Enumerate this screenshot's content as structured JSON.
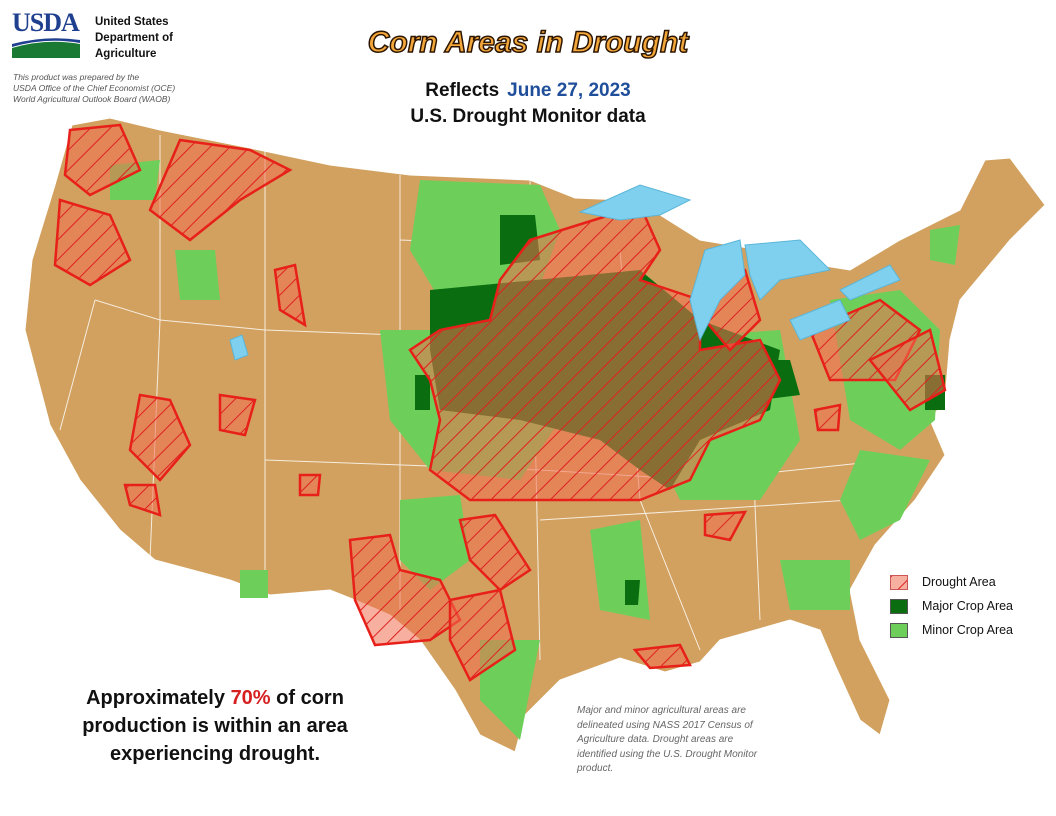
{
  "header": {
    "logo": "USDA",
    "agency": [
      "United States",
      "Department of",
      "Agriculture"
    ],
    "disclaimer": [
      "This product was prepared by the",
      "USDA Office of the Chief Economist (OCE)",
      "World Agricultural Outlook Board (WAOB)"
    ]
  },
  "title": "Corn Areas in Drought",
  "subtitle": {
    "prefix": "Reflects",
    "date": "June 27, 2023",
    "source": "U.S. Drought Monitor data"
  },
  "legend": [
    {
      "label": "Drought Area"
    },
    {
      "label": "Major Crop Area"
    },
    {
      "label": "Minor Crop Area"
    }
  ],
  "summary": {
    "lead": "Approximately",
    "highlight": "70%",
    "lines": [
      "of corn",
      "production is within an area",
      "experiencing drought."
    ]
  },
  "note": [
    "Major and minor agricultural areas are",
    "delineated using NASS 2017 Census of",
    "Agriculture data.  Drought areas are",
    "identified using the U.S. Drought Monitor",
    "product."
  ]
}
